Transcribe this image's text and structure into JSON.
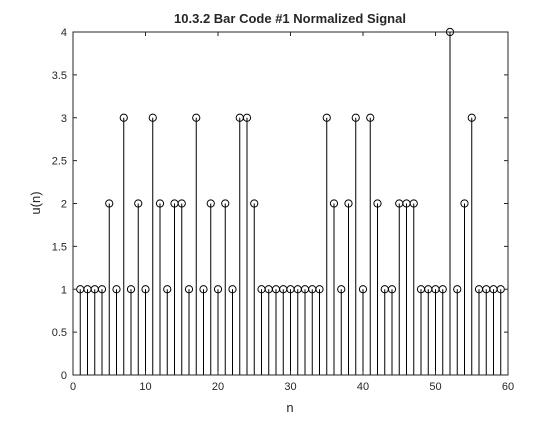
{
  "chart_data": {
    "type": "stem",
    "title": "10.3.2 Bar Code #1 Normalized Signal",
    "xlabel": "n",
    "ylabel": "u(n)",
    "xlim": [
      0,
      60
    ],
    "ylim": [
      0,
      4
    ],
    "xticks": [
      "0",
      "10",
      "20",
      "30",
      "40",
      "50",
      "60"
    ],
    "yticks": [
      "0",
      "0.5",
      "1",
      "1.5",
      "2",
      "2.5",
      "3",
      "3.5",
      "4"
    ],
    "grid": false,
    "marker": "circle",
    "color": "#000000",
    "x": [
      1,
      2,
      3,
      4,
      5,
      6,
      7,
      8,
      9,
      10,
      11,
      12,
      13,
      14,
      15,
      16,
      17,
      18,
      19,
      20,
      21,
      22,
      23,
      24,
      25,
      26,
      27,
      28,
      29,
      30,
      31,
      32,
      33,
      34,
      35,
      36,
      37,
      38,
      39,
      40,
      41,
      42,
      43,
      44,
      45,
      46,
      47,
      48,
      49,
      50,
      51,
      52,
      53,
      54,
      55,
      56,
      57,
      58,
      59
    ],
    "values": [
      1,
      1,
      1,
      1,
      2,
      1,
      3,
      1,
      2,
      1,
      3,
      2,
      1,
      2,
      2,
      1,
      3,
      1,
      2,
      1,
      2,
      1,
      3,
      3,
      2,
      1,
      1,
      1,
      1,
      1,
      1,
      1,
      1,
      1,
      3,
      2,
      1,
      2,
      3,
      1,
      3,
      2,
      1,
      1,
      2,
      2,
      2,
      1,
      1,
      1,
      1,
      4,
      1,
      2,
      3,
      1,
      1,
      1,
      1
    ]
  }
}
